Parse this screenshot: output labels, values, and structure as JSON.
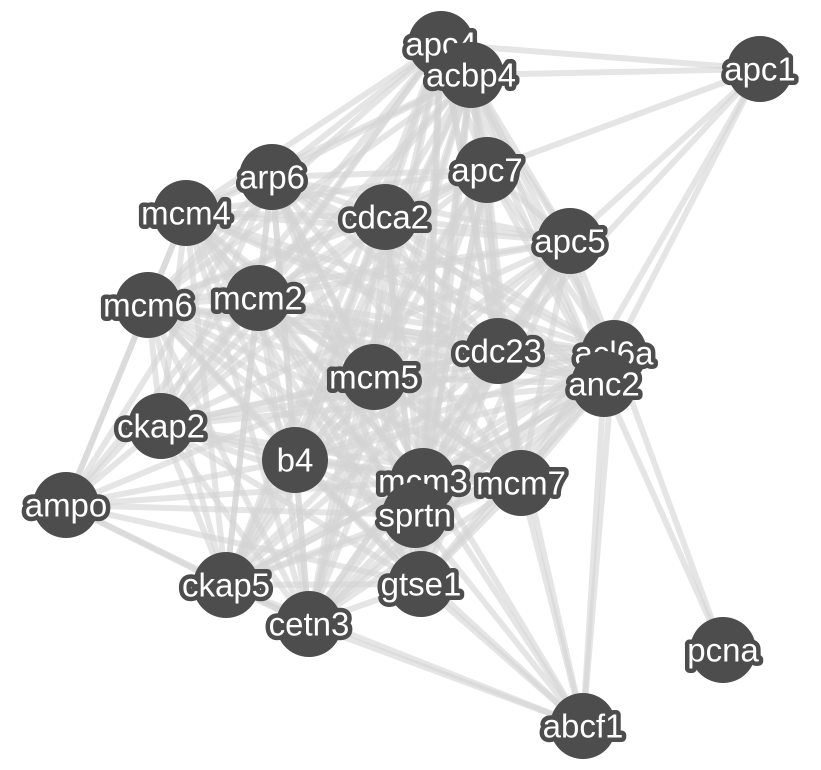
{
  "network": {
    "nodes": [
      {
        "id": "apc4",
        "label": "apc4"
      },
      {
        "id": "acbp4",
        "label": "acbp4"
      },
      {
        "id": "apc1",
        "label": "apc1"
      },
      {
        "id": "arp6",
        "label": "arp6"
      },
      {
        "id": "apc7",
        "label": "apc7"
      },
      {
        "id": "mcm4",
        "label": "mcm4"
      },
      {
        "id": "cdca2",
        "label": "cdca2"
      },
      {
        "id": "apc5",
        "label": "apc5"
      },
      {
        "id": "mcm6",
        "label": "mcm6"
      },
      {
        "id": "mcm2",
        "label": "mcm2"
      },
      {
        "id": "cdc23",
        "label": "cdc23"
      },
      {
        "id": "acl6a",
        "label": "acl6a"
      },
      {
        "id": "anc2",
        "label": "anc2"
      },
      {
        "id": "mcm5",
        "label": "mcm5"
      },
      {
        "id": "ckap2",
        "label": "ckap2"
      },
      {
        "id": "b4",
        "label": "b4"
      },
      {
        "id": "mcm3",
        "label": "mcm3"
      },
      {
        "id": "mcm7",
        "label": "mcm7"
      },
      {
        "id": "ampo",
        "label": "ampo"
      },
      {
        "id": "sprtn",
        "label": "sprtn"
      },
      {
        "id": "ckap5",
        "label": "ckap5"
      },
      {
        "id": "gtse1",
        "label": "gtse1"
      },
      {
        "id": "cetn3",
        "label": "cetn3"
      },
      {
        "id": "pcna",
        "label": "pcna"
      },
      {
        "id": "abcf1",
        "label": "abcf1"
      }
    ],
    "colors": {
      "node_fill": "#4d4d4d",
      "label_text": "#ffffff",
      "edge": "#d3d3d3",
      "background": "#ffffff"
    }
  }
}
